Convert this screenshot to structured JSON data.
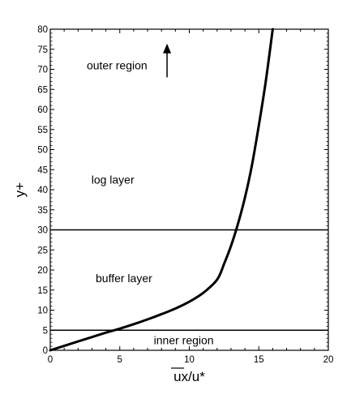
{
  "chart_data": {
    "type": "line",
    "xlabel": "ux/u*",
    "ylabel": "y+",
    "xlim": [
      0,
      20
    ],
    "ylim": [
      0,
      80
    ],
    "x_ticks": [
      0,
      5,
      10,
      15,
      20
    ],
    "y_ticks": [
      0,
      5,
      10,
      15,
      20,
      25,
      30,
      35,
      40,
      45,
      50,
      55,
      60,
      65,
      70,
      75,
      80
    ],
    "grid": false,
    "series": [
      {
        "x": [
          0,
          1,
          2,
          3,
          4,
          5,
          6,
          7,
          8,
          9,
          10,
          11,
          12,
          12.5,
          13,
          13.5,
          14,
          14.5,
          15,
          15.5,
          16
        ],
        "y": [
          0,
          1.1,
          2.2,
          3.3,
          4.4,
          5.4,
          6.5,
          7.7,
          9.0,
          10.4,
          12.1,
          14.3,
          17.6,
          21.5,
          26.0,
          31.5,
          38.0,
          46.0,
          56.0,
          67.0,
          80.0
        ]
      }
    ],
    "reference_lines": [
      {
        "axis": "y",
        "value": 5
      },
      {
        "axis": "y",
        "value": 30
      }
    ],
    "annotations": [
      {
        "text": "outer region",
        "x": 4.8,
        "y": 71
      },
      {
        "text": "log layer",
        "x": 4.5,
        "y": 42.5
      },
      {
        "text": "buffer layer",
        "x": 5.3,
        "y": 18
      },
      {
        "text": "inner region",
        "x": 9.6,
        "y": 2.5
      }
    ],
    "arrow": {
      "x": 8.4,
      "y_from": 68,
      "y_to": 76
    }
  }
}
